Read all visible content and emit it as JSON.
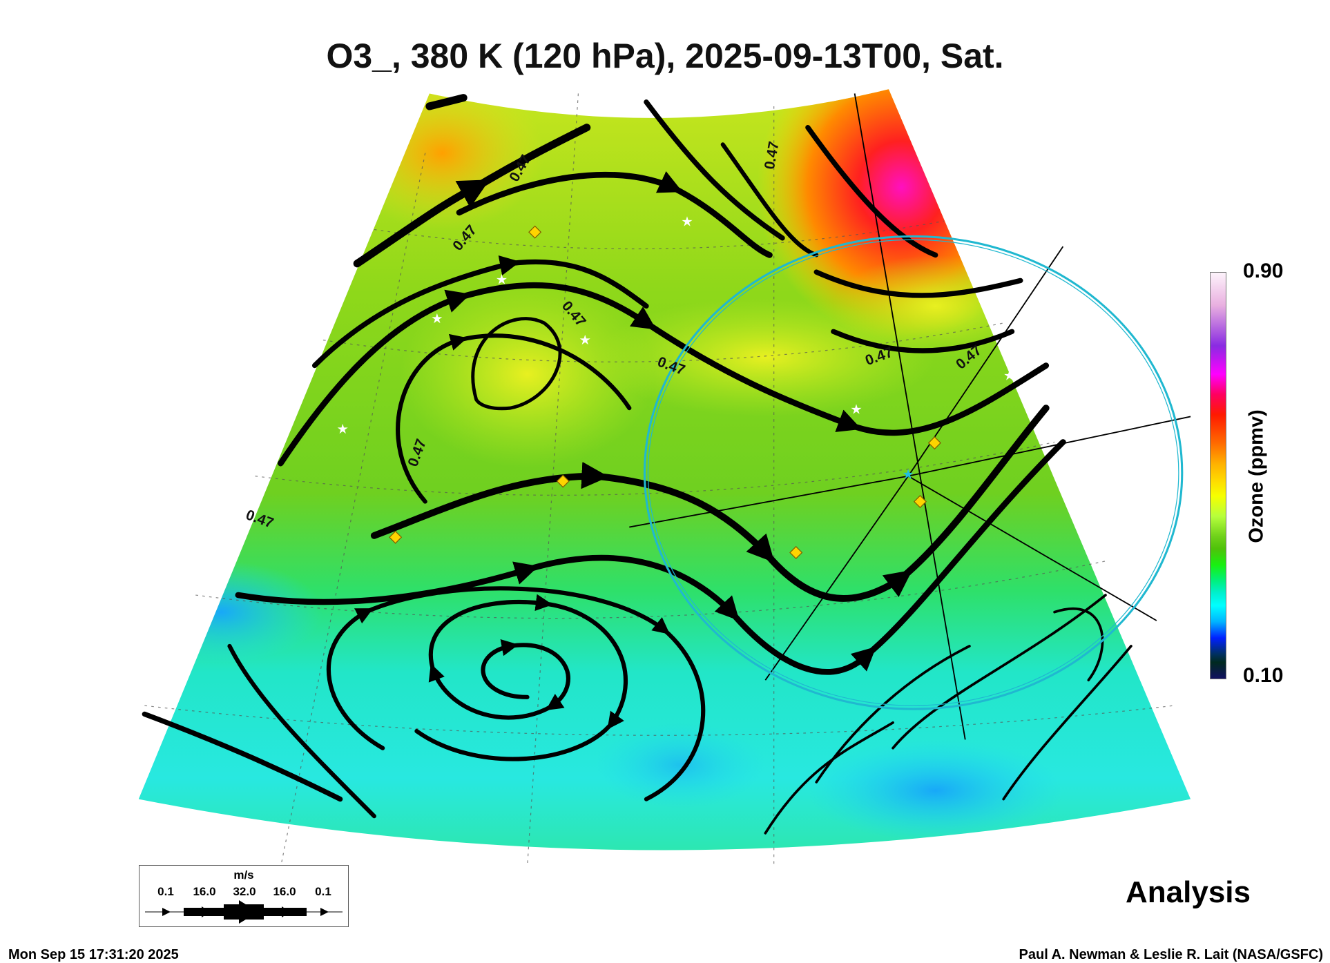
{
  "title": "O3_, 380 K (120 hPa), 2025-09-13T00, Sat.",
  "colorbar": {
    "label": "Ozone (ppmv)",
    "max": "0.90",
    "min": "0.10"
  },
  "contour_labels": [
    "0.47",
    "0.47",
    "0.47",
    "0.47",
    "0.47",
    "0.47",
    "0.47",
    "0.47",
    "0.47"
  ],
  "wind_legend": {
    "unit": "m/s",
    "values": [
      "0.1",
      "16.0",
      "32.0",
      "16.0",
      "0.1"
    ]
  },
  "analysis_label": "Analysis",
  "timestamp": "Mon Sep 15 17:31:20 2025",
  "credit": "Paul A. Newman & Leslie R. Lait (NASA/GSFC)",
  "chart_data": {
    "type": "heatmap",
    "title": "O3_, 380 K (120 hPa), 2025-09-13T00, Sat.",
    "variable": "Ozone (ppmv)",
    "color_range": [
      0.1,
      0.9
    ],
    "contour_level": 0.47,
    "overlay": "wind streamlines (m/s)",
    "wind_scale": [
      0.1,
      16.0,
      32.0,
      16.0,
      0.1
    ]
  }
}
